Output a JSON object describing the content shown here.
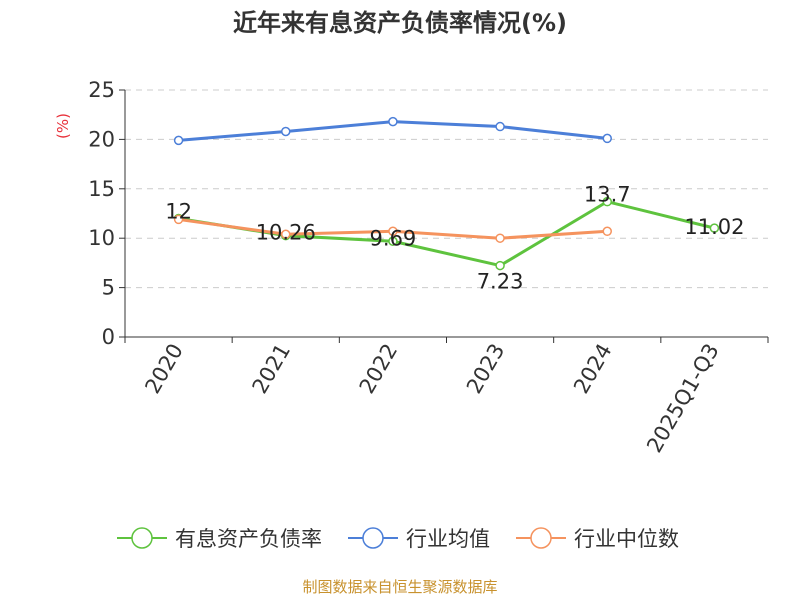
{
  "chart_data": {
    "type": "line",
    "title": "近年来有息资产负债率情况(%)",
    "ylabel": "(%)",
    "categories": [
      "2020",
      "2021",
      "2022",
      "2023",
      "2024",
      "2025Q1-Q3"
    ],
    "ylim": [
      0,
      25
    ],
    "yticks": [
      0,
      5,
      10,
      15,
      20,
      25
    ],
    "grid": true,
    "legend_position": "bottom",
    "series": [
      {
        "name": "有息资产负债率",
        "color": "#5ec33e",
        "values": [
          12,
          10.26,
          9.69,
          7.23,
          13.7,
          11.02
        ],
        "labels": [
          "12",
          "10.26",
          "9.69",
          "7.23",
          "13.7",
          "11.02"
        ]
      },
      {
        "name": "行业均值",
        "color": "#4c7fd8",
        "values": [
          19.9,
          20.8,
          21.8,
          21.3,
          20.1,
          null
        ]
      },
      {
        "name": "行业中位数",
        "color": "#f5935e",
        "values": [
          11.9,
          10.4,
          10.7,
          10.0,
          10.7,
          null
        ]
      }
    ]
  },
  "source": "制图数据来自恒生聚源数据库"
}
